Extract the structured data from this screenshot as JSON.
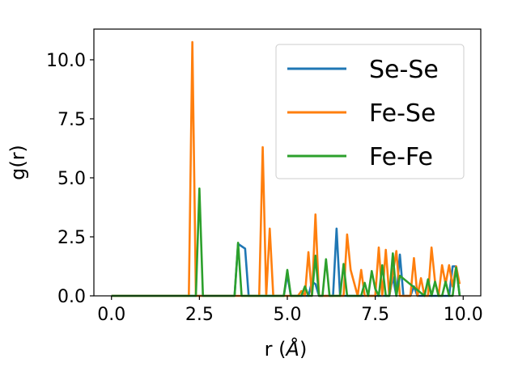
{
  "chart_data": {
    "type": "line",
    "title": "",
    "xlabel_main": "r (",
    "xlabel_unit": "Å",
    "xlabel_close": ")",
    "ylabel": "g(r)",
    "xlim": [
      -0.5,
      10.5
    ],
    "ylim": [
      0,
      11.3
    ],
    "xticks": [
      0.0,
      2.5,
      5.0,
      7.5,
      10.0
    ],
    "xtick_labels": [
      "0.0",
      "2.5",
      "5.0",
      "7.5",
      "10.0"
    ],
    "yticks": [
      0.0,
      2.5,
      5.0,
      7.5,
      10.0
    ],
    "ytick_labels": [
      "0.0",
      "2.5",
      "5.0",
      "7.5",
      "10.0"
    ],
    "grid": false,
    "legend": "top-right",
    "series": [
      {
        "name": "Se-Se",
        "color": "#1f77b4",
        "x": [
          0.0,
          3.5,
          3.6,
          3.8,
          3.9,
          4.9,
          5.0,
          5.1,
          5.6,
          5.7,
          5.8,
          5.9,
          6.3,
          6.4,
          6.5,
          7.9,
          8.0,
          8.1,
          8.2,
          8.3,
          8.5,
          8.6,
          8.7,
          9.6,
          9.7,
          9.8,
          9.9
        ],
        "y": [
          0.0,
          0.0,
          2.2,
          2.0,
          0.0,
          0.0,
          0.9,
          0.0,
          0.0,
          0.6,
          0.5,
          0.0,
          0.0,
          2.85,
          0.0,
          0.0,
          0.8,
          0.0,
          1.75,
          0.0,
          0.0,
          0.4,
          0.0,
          0.0,
          1.25,
          1.25,
          0.0
        ]
      },
      {
        "name": "Fe-Se",
        "color": "#ff7f0e",
        "x": [
          0.0,
          2.2,
          2.3,
          2.4,
          4.2,
          4.3,
          4.4,
          4.5,
          4.6,
          5.3,
          5.4,
          5.5,
          5.6,
          5.7,
          5.8,
          5.9,
          6.6,
          6.7,
          6.8,
          7.0,
          7.1,
          7.2,
          7.5,
          7.6,
          7.7,
          7.8,
          7.9,
          8.1,
          8.2,
          8.5,
          8.6,
          8.7,
          8.8,
          8.9,
          9.0,
          9.1,
          9.2,
          9.3,
          9.4,
          9.5,
          9.6,
          9.7,
          9.8,
          9.9
        ],
        "y": [
          0.0,
          0.0,
          10.75,
          0.0,
          0.0,
          6.3,
          0.0,
          2.85,
          0.0,
          0.0,
          0.2,
          0.0,
          1.85,
          0.0,
          3.45,
          0.0,
          0.0,
          2.6,
          1.1,
          0.0,
          1.1,
          0.0,
          0.0,
          2.05,
          0.0,
          1.95,
          0.0,
          1.9,
          0.0,
          0.0,
          1.6,
          0.0,
          0.75,
          0.0,
          0.0,
          2.05,
          0.6,
          0.0,
          1.3,
          0.5,
          1.3,
          0.4,
          1.25,
          0.5
        ]
      },
      {
        "name": "Fe-Fe",
        "color": "#2ca02c",
        "x": [
          0.0,
          2.4,
          2.5,
          2.6,
          3.5,
          3.6,
          3.7,
          4.9,
          5.0,
          5.1,
          5.4,
          5.5,
          5.6,
          5.7,
          5.8,
          5.9,
          6.0,
          6.1,
          6.2,
          6.5,
          6.6,
          6.7,
          7.1,
          7.2,
          7.3,
          7.4,
          7.5,
          7.6,
          7.7,
          7.8,
          7.9,
          8.0,
          8.1,
          8.2,
          8.9,
          9.0,
          9.1,
          9.2,
          9.3,
          9.4,
          9.5,
          9.6,
          9.7,
          9.8,
          9.9
        ],
        "y": [
          0.0,
          0.0,
          4.55,
          0.0,
          0.0,
          2.25,
          0.0,
          0.0,
          1.1,
          0.0,
          0.0,
          0.4,
          0.0,
          0.0,
          1.7,
          0.0,
          0.0,
          1.55,
          0.0,
          0.0,
          1.35,
          0.0,
          0.0,
          0.55,
          0.0,
          1.05,
          0.3,
          0.0,
          1.3,
          0.0,
          0.0,
          1.8,
          0.0,
          0.85,
          0.0,
          0.7,
          0.0,
          0.6,
          0.0,
          0.0,
          0.6,
          0.0,
          0.0,
          1.2,
          0.0
        ]
      }
    ]
  }
}
